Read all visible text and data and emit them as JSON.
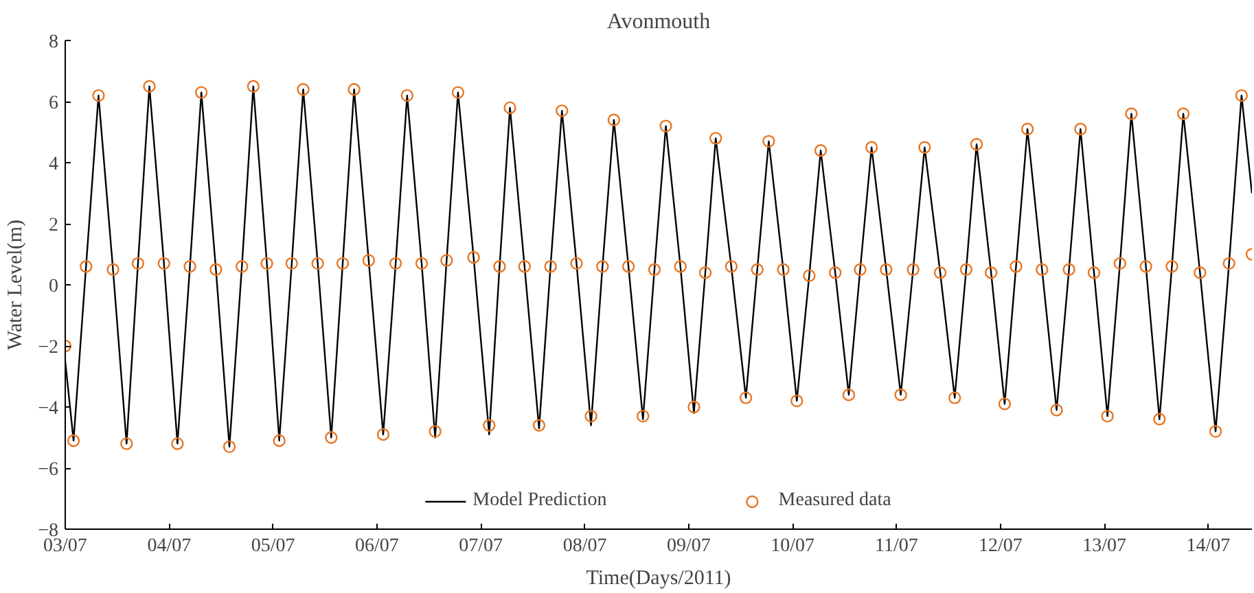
{
  "chart_data": {
    "type": "line",
    "title": "Avonmouth",
    "xlabel": "Time(Days/2011)",
    "ylabel": "Water Level(m)",
    "xlim": [
      "2011-07-03T00:00",
      "2011-07-14T10:05"
    ],
    "ylim": [
      -8,
      8
    ],
    "xticks": [
      {
        "value": "2011-07-03",
        "label": "03/07"
      },
      {
        "value": "2011-07-04",
        "label": "04/07"
      },
      {
        "value": "2011-07-05",
        "label": "05/07"
      },
      {
        "value": "2011-07-06",
        "label": "06/07"
      },
      {
        "value": "2011-07-07",
        "label": "07/07"
      },
      {
        "value": "2011-07-08",
        "label": "08/07"
      },
      {
        "value": "2011-07-09",
        "label": "09/07"
      },
      {
        "value": "2011-07-10",
        "label": "10/07"
      },
      {
        "value": "2011-07-11",
        "label": "11/07"
      },
      {
        "value": "2011-07-12",
        "label": "12/07"
      },
      {
        "value": "2011-07-13",
        "label": "13/07"
      },
      {
        "value": "2011-07-14",
        "label": "14/07"
      }
    ],
    "yticks": [
      -8,
      -6,
      -4,
      -2,
      0,
      2,
      4,
      6,
      8
    ],
    "grid": false,
    "legend": "bottom",
    "x": [
      "2011-07-03T00:00",
      "2011-07-03T01:55",
      "2011-07-03T04:48",
      "2011-07-03T07:41",
      "2011-07-03T11:02",
      "2011-07-03T14:10",
      "2011-07-03T16:48",
      "2011-07-03T19:26",
      "2011-07-03T22:48",
      "2011-07-04T01:55",
      "2011-07-04T04:48",
      "2011-07-04T07:26",
      "2011-07-04T10:48",
      "2011-07-04T13:55",
      "2011-07-04T16:48",
      "2011-07-04T19:26",
      "2011-07-04T22:34",
      "2011-07-05T01:26",
      "2011-07-05T04:19",
      "2011-07-05T06:58",
      "2011-07-05T10:19",
      "2011-07-05T13:26",
      "2011-07-05T16:05",
      "2011-07-05T18:43",
      "2011-07-05T22:05",
      "2011-07-06T01:26",
      "2011-07-06T04:19",
      "2011-07-06T06:58",
      "2011-07-06T10:19",
      "2011-07-06T13:26",
      "2011-07-06T16:05",
      "2011-07-06T18:43",
      "2011-07-06T22:19",
      "2011-07-07T01:55",
      "2011-07-07T04:19",
      "2011-07-07T06:43",
      "2011-07-07T10:05",
      "2011-07-07T13:26",
      "2011-07-07T16:05",
      "2011-07-07T18:43",
      "2011-07-07T22:05",
      "2011-07-08T01:26",
      "2011-07-08T04:05",
      "2011-07-08T06:43",
      "2011-07-08T10:05",
      "2011-07-08T13:26",
      "2011-07-08T16:05",
      "2011-07-08T18:43",
      "2011-07-08T22:05",
      "2011-07-09T01:12",
      "2011-07-09T03:50",
      "2011-07-09T06:14",
      "2011-07-09T09:50",
      "2011-07-09T13:12",
      "2011-07-09T15:50",
      "2011-07-09T18:29",
      "2011-07-09T21:50",
      "2011-07-10T00:58",
      "2011-07-10T03:50",
      "2011-07-10T06:29",
      "2011-07-10T09:50",
      "2011-07-10T12:58",
      "2011-07-10T15:36",
      "2011-07-10T18:14",
      "2011-07-10T21:36",
      "2011-07-11T00:58",
      "2011-07-11T03:50",
      "2011-07-11T06:29",
      "2011-07-11T10:05",
      "2011-07-11T13:26",
      "2011-07-11T16:05",
      "2011-07-11T18:29",
      "2011-07-11T21:50",
      "2011-07-12T00:58",
      "2011-07-12T03:36",
      "2011-07-12T06:14",
      "2011-07-12T09:36",
      "2011-07-12T12:58",
      "2011-07-12T15:50",
      "2011-07-12T18:29",
      "2011-07-12T21:36",
      "2011-07-13T00:43",
      "2011-07-13T03:36",
      "2011-07-13T06:14",
      "2011-07-13T09:36",
      "2011-07-13T12:43",
      "2011-07-13T15:36",
      "2011-07-13T18:14",
      "2011-07-13T22:05",
      "2011-07-14T01:41",
      "2011-07-14T04:48",
      "2011-07-14T07:41",
      "2011-07-14T10:05"
    ],
    "series": [
      {
        "name": "Model Prediction",
        "color": "#000000",
        "line_style": "solid",
        "values": [
          -2.5,
          -5.1,
          0.6,
          6.2,
          0.5,
          -5.2,
          0.7,
          6.5,
          0.7,
          -5.2,
          0.6,
          6.3,
          0.5,
          -5.3,
          0.6,
          6.5,
          0.7,
          -5.1,
          0.7,
          6.4,
          0.7,
          -5.0,
          0.7,
          6.4,
          0.8,
          -4.9,
          0.7,
          6.2,
          0.7,
          -5.0,
          0.8,
          6.3,
          0.9,
          -4.9,
          0.6,
          5.8,
          0.6,
          -4.7,
          0.6,
          5.7,
          0.7,
          -4.6,
          0.6,
          5.4,
          0.6,
          -4.4,
          0.5,
          5.2,
          0.6,
          -4.2,
          0.4,
          4.8,
          0.6,
          -3.7,
          0.5,
          4.7,
          0.5,
          -3.8,
          0.3,
          4.4,
          0.4,
          -3.6,
          0.5,
          4.5,
          0.5,
          -3.6,
          0.5,
          4.5,
          0.4,
          -3.7,
          0.5,
          4.6,
          0.4,
          -3.9,
          0.6,
          5.1,
          0.5,
          -4.1,
          0.5,
          5.1,
          0.4,
          -4.3,
          0.7,
          5.6,
          0.6,
          -4.4,
          0.6,
          5.6,
          0.4,
          -4.8,
          0.7,
          6.2,
          3.0
        ]
      },
      {
        "name": "Measured data",
        "type": "scatter",
        "marker": "circle",
        "color": "#e87722",
        "values": [
          -2.0,
          -5.1,
          0.6,
          6.2,
          0.5,
          -5.2,
          0.7,
          6.5,
          0.7,
          -5.2,
          0.6,
          6.3,
          0.5,
          -5.3,
          0.6,
          6.5,
          0.7,
          -5.1,
          0.7,
          6.4,
          0.7,
          -5.0,
          0.7,
          6.4,
          0.8,
          -4.9,
          0.7,
          6.2,
          0.7,
          -4.8,
          0.8,
          6.3,
          0.9,
          -4.6,
          0.6,
          5.8,
          0.6,
          -4.6,
          0.6,
          5.7,
          0.7,
          -4.3,
          0.6,
          5.4,
          0.6,
          -4.3,
          0.5,
          5.2,
          0.6,
          -4.0,
          0.4,
          4.8,
          0.6,
          -3.7,
          0.5,
          4.7,
          0.5,
          -3.8,
          0.3,
          4.4,
          0.4,
          -3.6,
          0.5,
          4.5,
          0.5,
          -3.6,
          0.5,
          4.5,
          0.4,
          -3.7,
          0.5,
          4.6,
          0.4,
          -3.9,
          0.6,
          5.1,
          0.5,
          -4.1,
          0.5,
          5.1,
          0.4,
          -4.3,
          0.7,
          5.6,
          0.6,
          -4.4,
          0.6,
          5.6,
          0.4,
          -4.8,
          0.7,
          6.2,
          1.0
        ]
      }
    ]
  }
}
